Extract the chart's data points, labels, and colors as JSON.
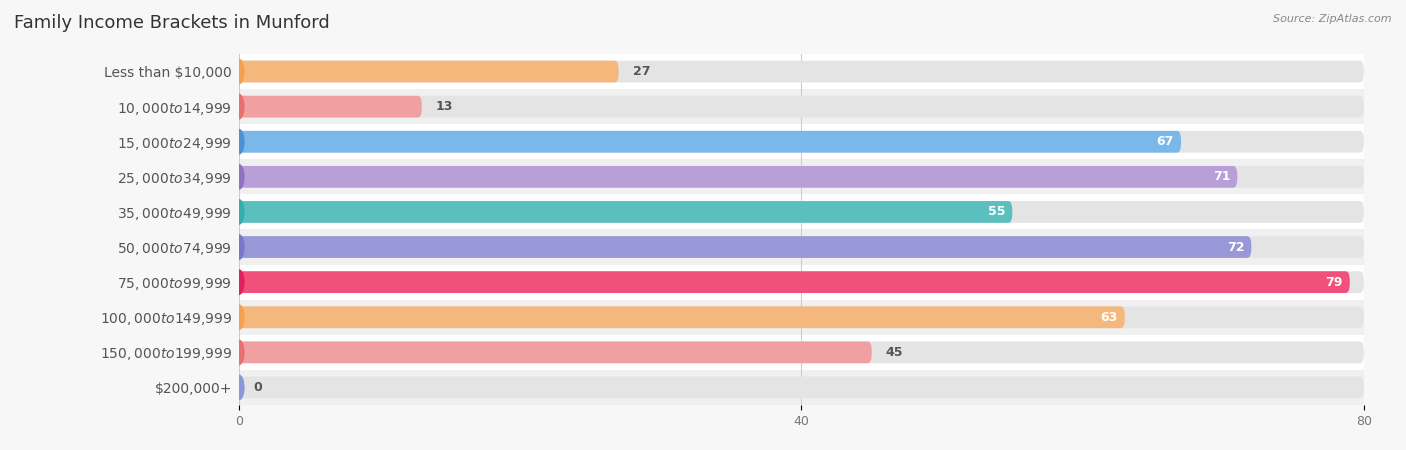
{
  "title": "Family Income Brackets in Munford",
  "source": "Source: ZipAtlas.com",
  "categories": [
    "Less than $10,000",
    "$10,000 to $14,999",
    "$15,000 to $24,999",
    "$25,000 to $34,999",
    "$35,000 to $49,999",
    "$50,000 to $74,999",
    "$75,000 to $99,999",
    "$100,000 to $149,999",
    "$150,000 to $199,999",
    "$200,000+"
  ],
  "values": [
    27,
    13,
    67,
    71,
    55,
    72,
    79,
    63,
    45,
    0
  ],
  "bar_colors": [
    "#F5B87C",
    "#F0A0A0",
    "#7AB8EA",
    "#B89FD8",
    "#5BBFC0",
    "#9898D8",
    "#F0507A",
    "#F5B87C",
    "#F0A0A0",
    "#A8B8E8"
  ],
  "circle_colors": [
    "#F5A050",
    "#E87070",
    "#4E90D0",
    "#9070C0",
    "#35ACAE",
    "#7878C8",
    "#E02060",
    "#F5A050",
    "#E87070",
    "#8898D8"
  ],
  "xlim": [
    0,
    80
  ],
  "xticks": [
    0,
    40,
    80
  ],
  "background_color": "#f7f7f7",
  "bar_background_color": "#e4e4e4",
  "row_bg_colors": [
    "#ffffff",
    "#f0f0f0"
  ],
  "title_fontsize": 13,
  "label_fontsize": 10,
  "value_fontsize": 9,
  "bar_height": 0.62
}
